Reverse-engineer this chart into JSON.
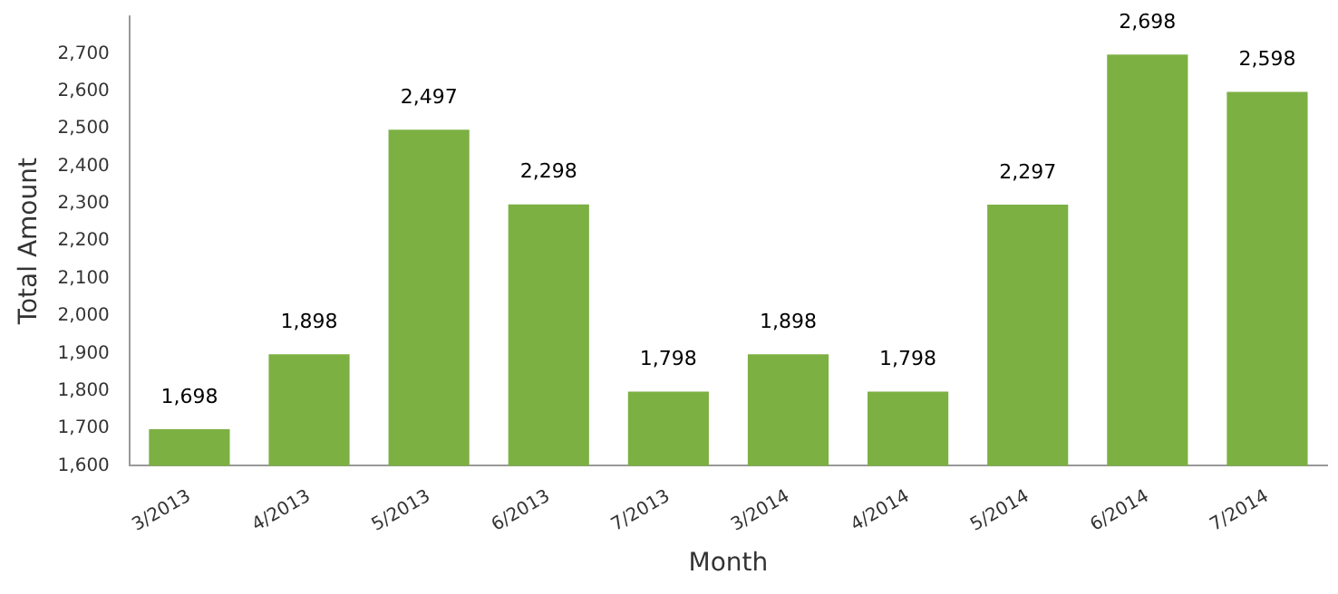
{
  "chart_data": {
    "type": "bar",
    "xlabel": "Month",
    "ylabel": "Total Amount",
    "categories": [
      "3/2013",
      "4/2013",
      "5/2013",
      "6/2013",
      "7/2013",
      "3/2014",
      "4/2014",
      "5/2014",
      "6/2014",
      "7/2014"
    ],
    "values": [
      1698,
      1898,
      2497,
      2298,
      1798,
      1898,
      1798,
      2297,
      2698,
      2598
    ],
    "color": "#7cb043",
    "ylim": [
      1600,
      2800
    ],
    "yticks": [
      {
        "value": 1600,
        "label": "1,600"
      },
      {
        "value": 1700,
        "label": "1,700"
      },
      {
        "value": 1800,
        "label": "1,800"
      },
      {
        "value": 1900,
        "label": "1,900"
      },
      {
        "value": 2000,
        "label": "2,000"
      },
      {
        "value": 2100,
        "label": "2,100"
      },
      {
        "value": 2200,
        "label": "2,200"
      },
      {
        "value": 2300,
        "label": "2,300"
      },
      {
        "value": 2400,
        "label": "2,400"
      },
      {
        "value": 2500,
        "label": "2,500"
      },
      {
        "value": 2600,
        "label": "2,600"
      },
      {
        "value": 2700,
        "label": "2,700"
      }
    ],
    "value_labels": [
      "1,698",
      "1,898",
      "2,497",
      "2,298",
      "1,798",
      "1,898",
      "1,798",
      "2,297",
      "2,698",
      "2,598"
    ],
    "grid": false,
    "legend": false
  }
}
